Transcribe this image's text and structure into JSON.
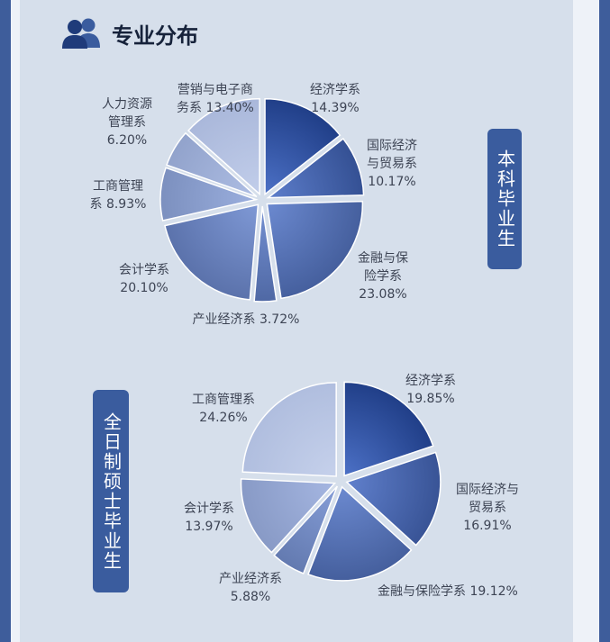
{
  "section_title": "专业分布",
  "chart_data": [
    {
      "type": "pie",
      "group_label": "本科毕业生",
      "slices": [
        {
          "name": "经济学系",
          "value": 14.39,
          "pct_label": "14.39%",
          "label_lines": [
            "经济学系",
            "14.39%"
          ]
        },
        {
          "name": "国际经济与贸易系",
          "value": 10.17,
          "pct_label": "10.17%",
          "label_lines": [
            "国际经济",
            "与贸易系",
            "10.17%"
          ]
        },
        {
          "name": "金融与保险学系",
          "value": 23.08,
          "pct_label": "23.08%",
          "label_lines": [
            "金融与保",
            "险学系",
            "23.08%"
          ]
        },
        {
          "name": "产业经济系",
          "value": 3.72,
          "pct_label": "3.72%",
          "label_lines": [
            "产业经济系 3.72%"
          ]
        },
        {
          "name": "会计学系",
          "value": 20.1,
          "pct_label": "20.10%",
          "label_lines": [
            "会计学系",
            "20.10%"
          ]
        },
        {
          "name": "工商管理系",
          "value": 8.93,
          "pct_label": "8.93%",
          "label_lines": [
            "工商管理",
            "系 8.93%"
          ]
        },
        {
          "name": "人力资源管理系",
          "value": 6.2,
          "pct_label": "6.20%",
          "label_lines": [
            "人力资源",
            "管理系",
            "6.20%"
          ]
        },
        {
          "name": "营销与电子商务系",
          "value": 13.4,
          "pct_label": "13.40%",
          "label_lines": [
            "营销与电子商",
            "务系 13.40%"
          ]
        }
      ]
    },
    {
      "type": "pie",
      "group_label": "全日制硕士毕业生",
      "slices": [
        {
          "name": "经济学系",
          "value": 19.85,
          "pct_label": "19.85%",
          "label_lines": [
            "经济学系",
            "19.85%"
          ]
        },
        {
          "name": "国际经济与贸易系",
          "value": 16.91,
          "pct_label": "16.91%",
          "label_lines": [
            "国际经济与",
            "贸易系",
            "16.91%"
          ]
        },
        {
          "name": "金融与保险学系",
          "value": 19.12,
          "pct_label": "19.12%",
          "label_lines": [
            "金融与保险学系 19.12%"
          ]
        },
        {
          "name": "产业经济系",
          "value": 5.88,
          "pct_label": "5.88%",
          "label_lines": [
            "产业经济系",
            "5.88%"
          ]
        },
        {
          "name": "会计学系",
          "value": 13.97,
          "pct_label": "13.97%",
          "label_lines": [
            "会计学系",
            "13.97%"
          ]
        },
        {
          "name": "工商管理系",
          "value": 24.26,
          "pct_label": "24.26%",
          "label_lines": [
            "工商管理系",
            "24.26%"
          ]
        }
      ]
    }
  ],
  "icons": {
    "heading": "people-icon"
  },
  "colors": {
    "frame": "#3e5d9b",
    "panel": "#d6dfeb",
    "badge": "#3a5c9e",
    "slice_dark": "#1f3d86",
    "slice_mid": "#3a63c4",
    "slice_light": "#c7d2ec"
  }
}
